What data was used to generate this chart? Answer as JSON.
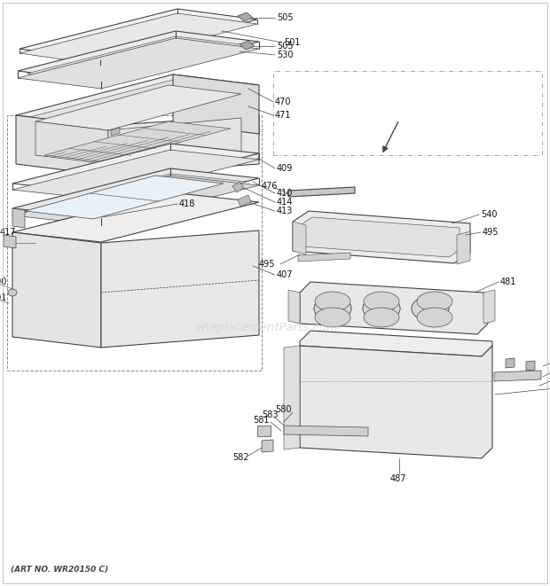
{
  "art_no": "(ART NO. WR20150 C)",
  "watermark": "eReplacementParts.com",
  "bg_color": "#ffffff",
  "line_color": "#444444",
  "label_color": "#111111",
  "label_fontsize": 7.0,
  "figsize": [
    6.2,
    6.61
  ],
  "dpi": 100
}
